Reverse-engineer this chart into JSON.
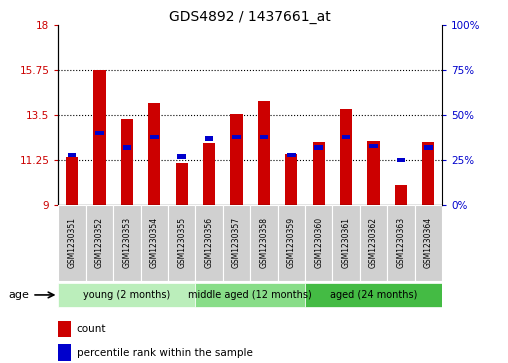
{
  "title": "GDS4892 / 1437661_at",
  "samples": [
    "GSM1230351",
    "GSM1230352",
    "GSM1230353",
    "GSM1230354",
    "GSM1230355",
    "GSM1230356",
    "GSM1230357",
    "GSM1230358",
    "GSM1230359",
    "GSM1230360",
    "GSM1230361",
    "GSM1230362",
    "GSM1230363",
    "GSM1230364"
  ],
  "count_values": [
    11.4,
    15.75,
    13.3,
    14.1,
    11.1,
    12.1,
    13.55,
    14.2,
    11.55,
    12.15,
    13.8,
    12.2,
    10.0,
    12.15
  ],
  "percentile_values": [
    28,
    40,
    32,
    38,
    27,
    37,
    38,
    38,
    28,
    32,
    38,
    33,
    25,
    32
  ],
  "y_min": 9,
  "y_max": 18,
  "y_ticks": [
    9,
    11.25,
    13.5,
    15.75,
    18
  ],
  "y2_ticks": [
    0,
    25,
    50,
    75,
    100
  ],
  "dotted_lines": [
    11.25,
    13.5,
    15.75
  ],
  "bar_color_red": "#cc0000",
  "bar_color_blue": "#0000cc",
  "background_color": "#ffffff",
  "groups": [
    {
      "label": "young (2 months)",
      "start": 0,
      "end": 5,
      "color": "#bbeebb"
    },
    {
      "label": "middle aged (12 months)",
      "start": 5,
      "end": 9,
      "color": "#88dd88"
    },
    {
      "label": "aged (24 months)",
      "start": 9,
      "end": 14,
      "color": "#44bb44"
    }
  ],
  "legend_count_label": "count",
  "legend_percentile_label": "percentile rank within the sample",
  "age_label": "age",
  "tick_label_color_left": "#cc0000",
  "tick_label_color_right": "#0000cc",
  "cell_color": "#d0d0d0"
}
